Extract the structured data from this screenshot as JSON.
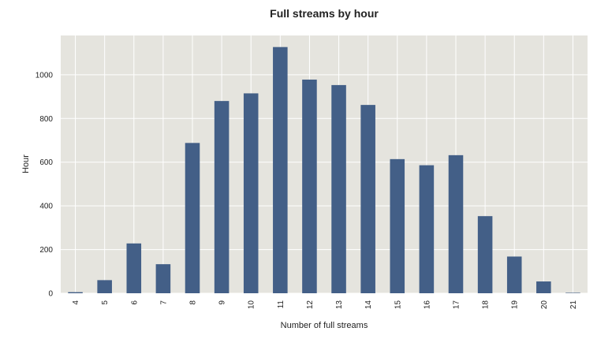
{
  "chart_data": {
    "type": "bar",
    "title": "Full streams by hour",
    "xlabel": "Number of full streams",
    "ylabel": "Hour",
    "categories": [
      "4",
      "5",
      "6",
      "7",
      "8",
      "9",
      "10",
      "11",
      "12",
      "13",
      "14",
      "15",
      "16",
      "17",
      "18",
      "19",
      "20",
      "21"
    ],
    "values": [
      5,
      60,
      228,
      133,
      688,
      880,
      915,
      1127,
      978,
      953,
      862,
      614,
      586,
      632,
      353,
      168,
      54,
      2
    ],
    "ylim": [
      0,
      1180
    ],
    "yticks": [
      0,
      200,
      400,
      600,
      800,
      1000
    ],
    "grid": true,
    "colors": {
      "bar": "#435f87",
      "plot_bg": "#e5e4de",
      "grid": "#ffffff"
    }
  }
}
